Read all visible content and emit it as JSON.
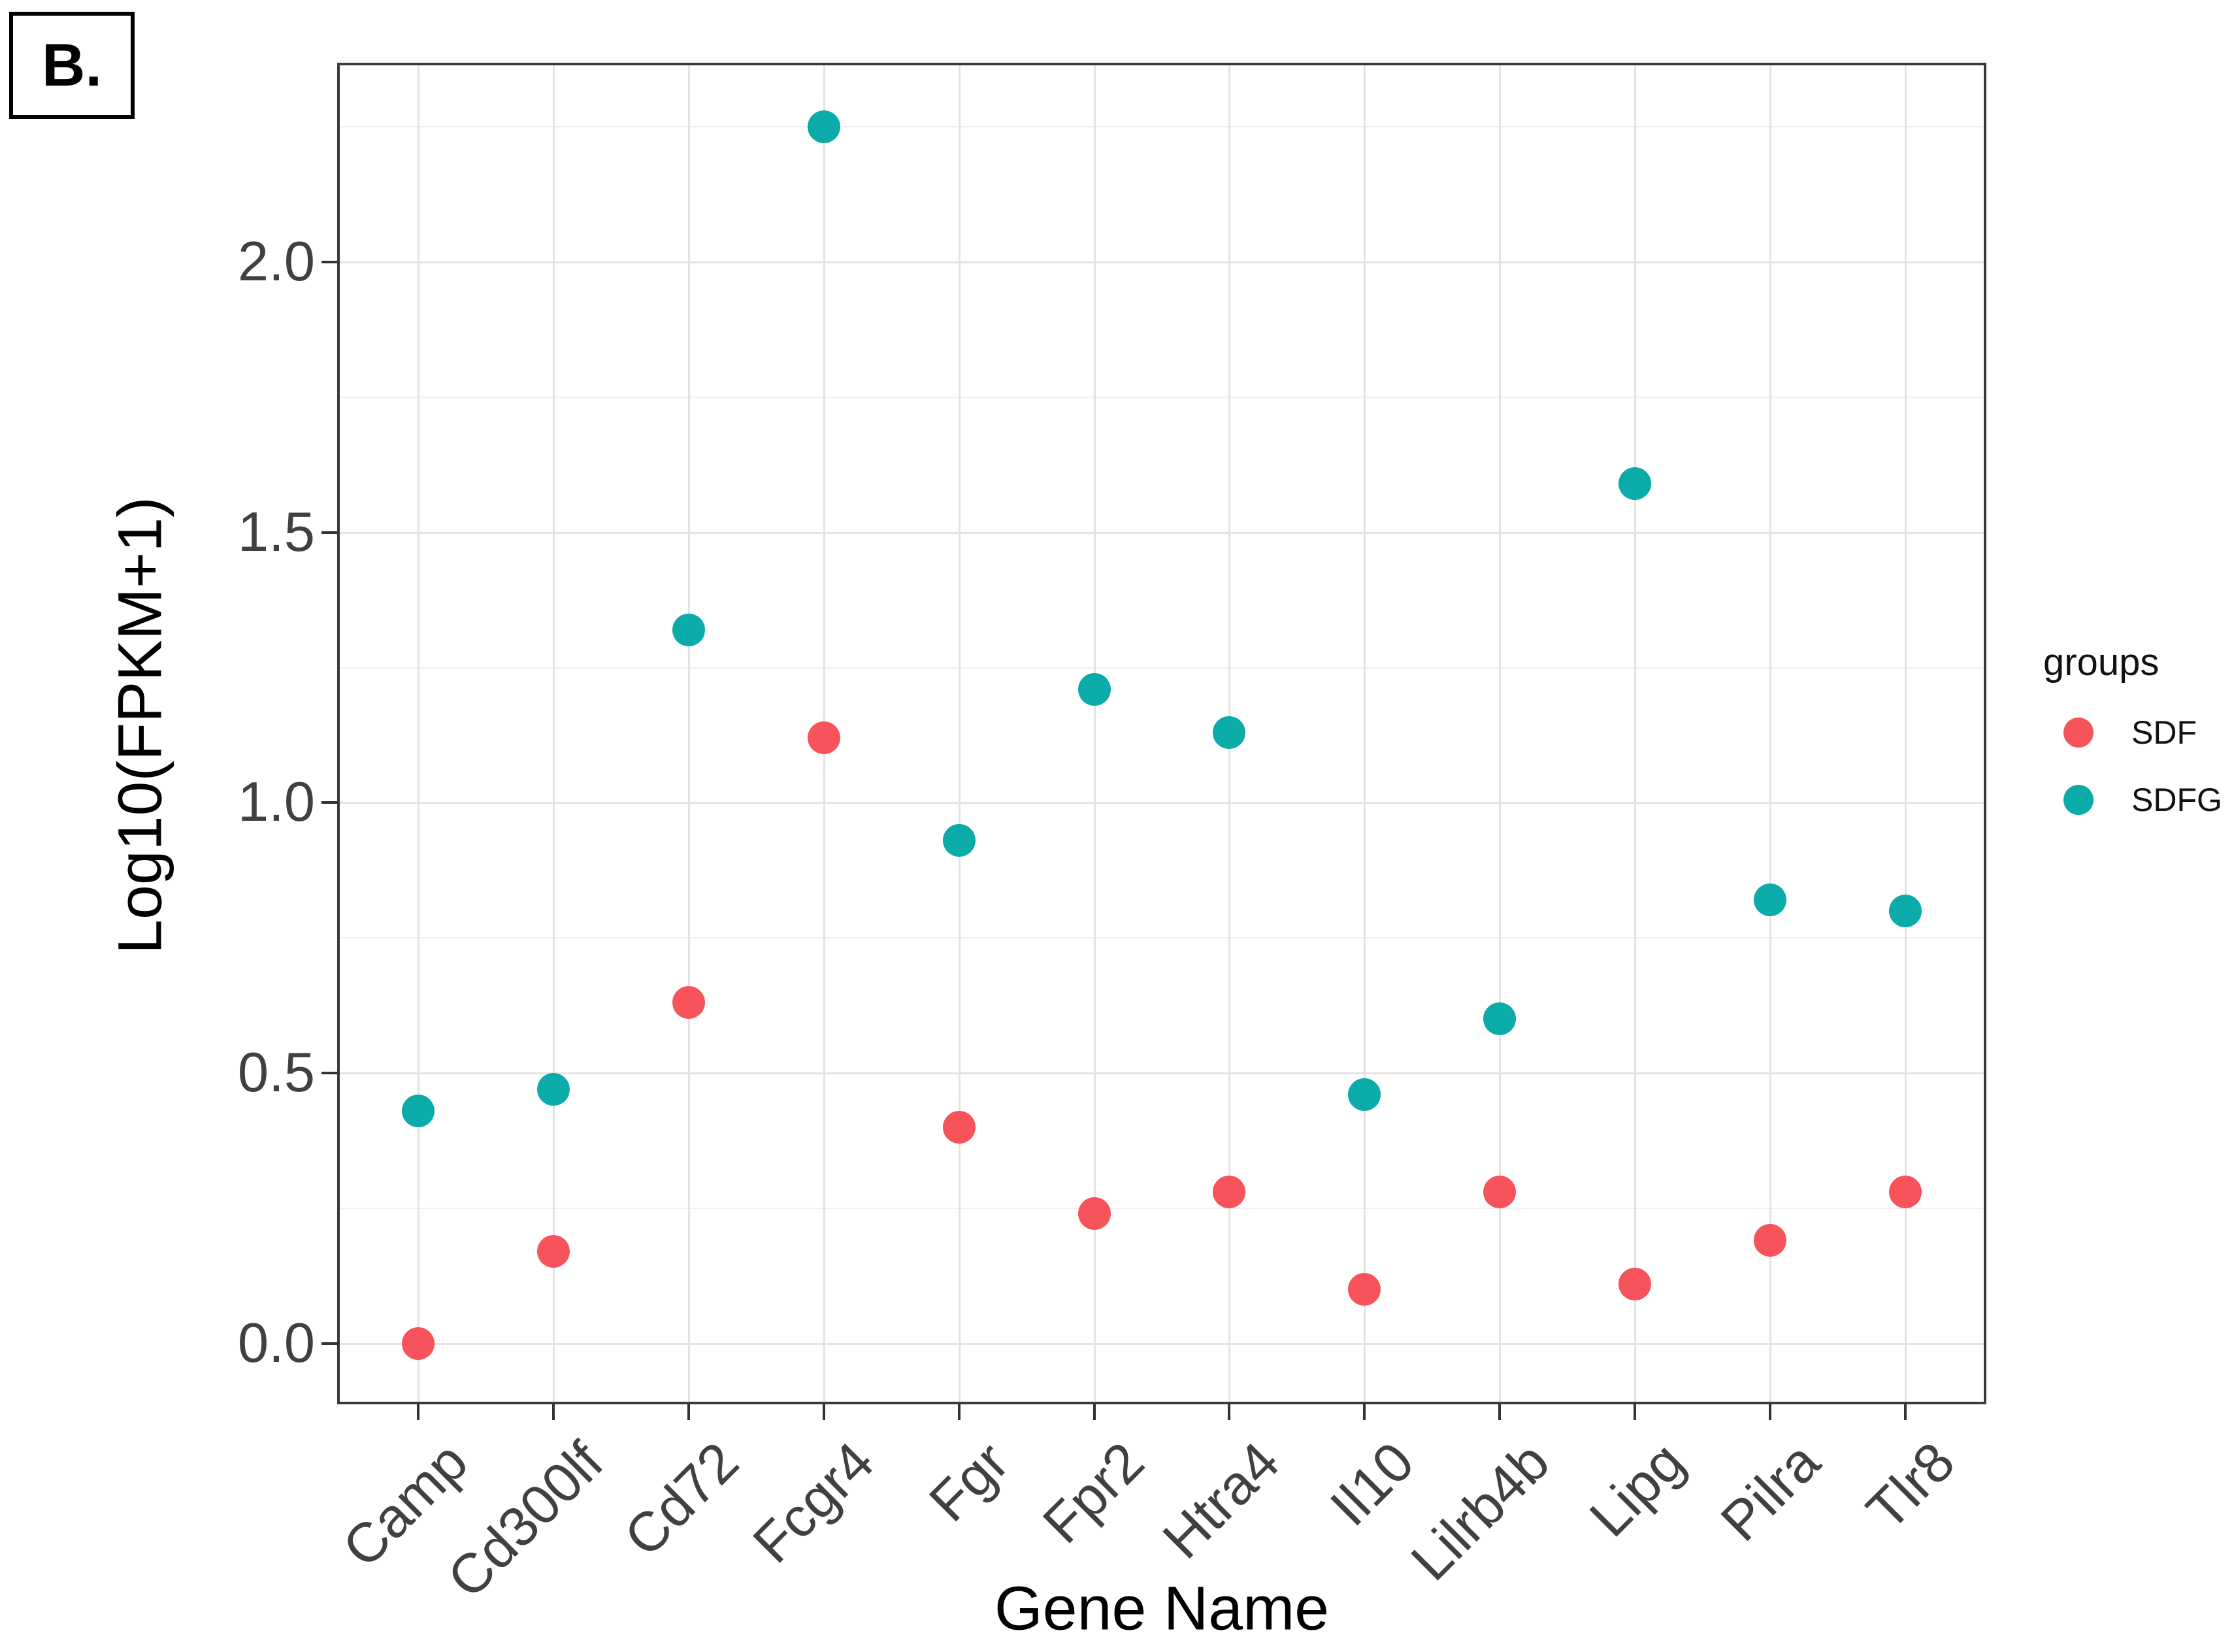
{
  "figure": {
    "panel_label": "B."
  },
  "chart_data": {
    "type": "scatter",
    "title": "",
    "xlabel": "Gene Name",
    "ylabel": "Log10(FPKM+1)",
    "legend_title": "groups",
    "legend_position": "right",
    "grid": "on",
    "categories": [
      "Camp",
      "Cd300lf",
      "Cd72",
      "Fcgr4",
      "Fgr",
      "Fpr2",
      "Htra4",
      "Il10",
      "Lilrb4b",
      "Lipg",
      "Pilra",
      "Tlr8"
    ],
    "series": [
      {
        "name": "SDF",
        "color": "#F6535A",
        "values": [
          0.0,
          0.17,
          0.63,
          1.12,
          0.4,
          0.24,
          0.28,
          0.1,
          0.28,
          0.11,
          0.19,
          0.28
        ]
      },
      {
        "name": "SDFG",
        "color": "#0AABA9",
        "values": [
          0.43,
          0.47,
          1.32,
          2.25,
          0.93,
          1.21,
          1.13,
          0.46,
          0.6,
          1.59,
          0.82,
          0.8
        ]
      }
    ],
    "y_tick_labels": [
      "0.0",
      "0.5",
      "1.0",
      "1.5",
      "2.0"
    ],
    "y_tick_values": [
      0.0,
      0.5,
      1.0,
      1.5,
      2.0
    ],
    "y_minor_tick_values": [
      0.25,
      0.75,
      1.25,
      1.75,
      2.25
    ],
    "ylim": [
      -0.113,
      2.369
    ]
  }
}
